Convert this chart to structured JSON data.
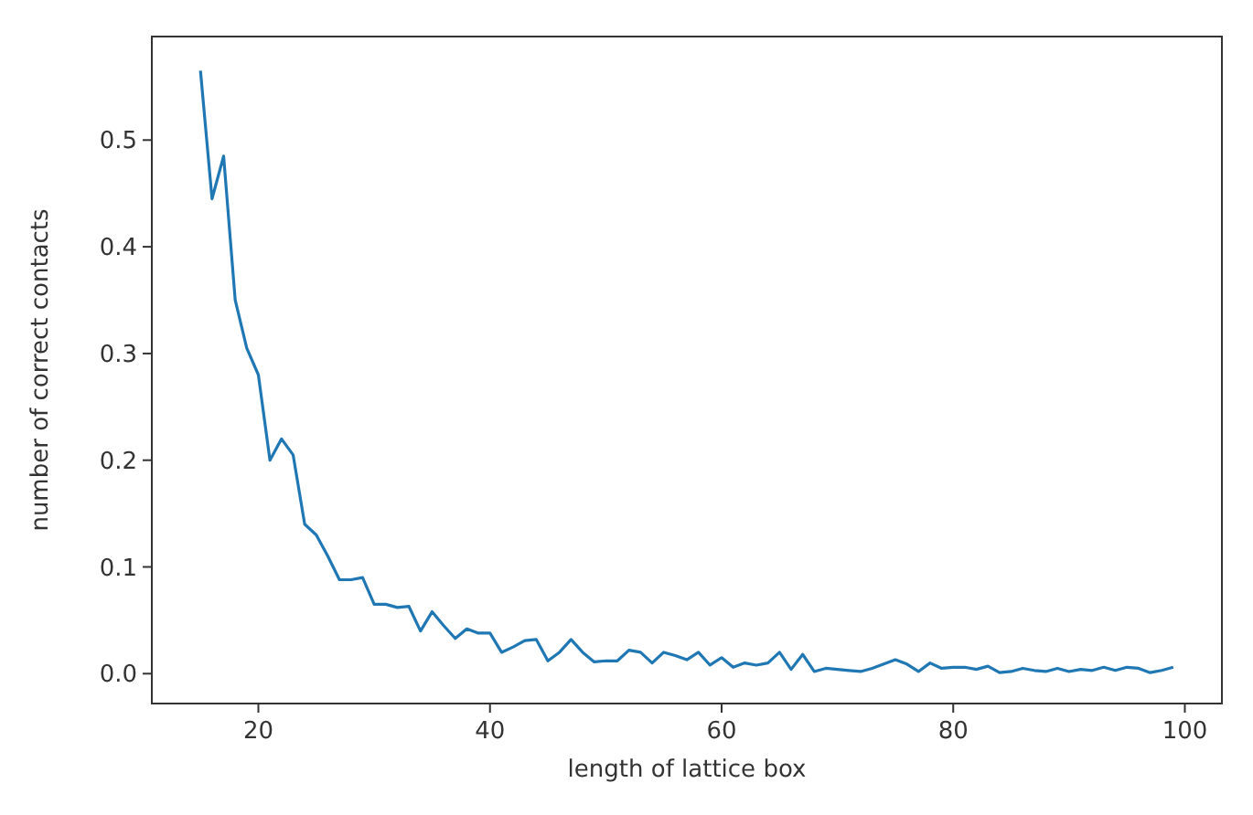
{
  "chart_data": {
    "type": "line",
    "xlabel": "length of lattice box",
    "ylabel": "number of correct contacts",
    "x": [
      15,
      16,
      17,
      18,
      19,
      20,
      21,
      22,
      23,
      24,
      25,
      26,
      27,
      28,
      29,
      30,
      31,
      32,
      33,
      34,
      35,
      36,
      37,
      38,
      39,
      40,
      41,
      42,
      43,
      44,
      45,
      46,
      47,
      48,
      49,
      50,
      51,
      52,
      53,
      54,
      55,
      56,
      57,
      58,
      59,
      60,
      61,
      62,
      63,
      64,
      65,
      66,
      67,
      68,
      69,
      70,
      71,
      72,
      73,
      74,
      75,
      76,
      77,
      78,
      79,
      80,
      81,
      82,
      83,
      84,
      85,
      86,
      87,
      88,
      89,
      90,
      91,
      92,
      93,
      94,
      95,
      96,
      97,
      98,
      99
    ],
    "series": [
      {
        "color": "#1f77b4",
        "values": [
          0.565,
          0.445,
          0.485,
          0.35,
          0.305,
          0.28,
          0.2,
          0.22,
          0.205,
          0.14,
          0.13,
          0.11,
          0.088,
          0.088,
          0.09,
          0.065,
          0.065,
          0.062,
          0.063,
          0.04,
          0.058,
          0.045,
          0.033,
          0.042,
          0.038,
          0.038,
          0.02,
          0.025,
          0.031,
          0.032,
          0.012,
          0.02,
          0.032,
          0.02,
          0.011,
          0.012,
          0.012,
          0.022,
          0.02,
          0.01,
          0.02,
          0.017,
          0.013,
          0.02,
          0.008,
          0.015,
          0.006,
          0.01,
          0.008,
          0.01,
          0.02,
          0.004,
          0.018,
          0.002,
          0.005,
          0.004,
          0.003,
          0.002,
          0.005,
          0.009,
          0.013,
          0.009,
          0.002,
          0.01,
          0.005,
          0.006,
          0.006,
          0.004,
          0.007,
          0.001,
          0.002,
          0.005,
          0.003,
          0.002,
          0.005,
          0.002,
          0.004,
          0.003,
          0.006,
          0.003,
          0.006,
          0.005,
          0.001,
          0.003,
          0.006
        ]
      }
    ],
    "xlim": [
      10.8,
      103.2
    ],
    "xticks": [
      20,
      40,
      60,
      80,
      100
    ],
    "ylim": [
      -0.028,
      0.597
    ],
    "yticks": [
      {
        "value": 0,
        "label": "0.0"
      },
      {
        "value": 0.1,
        "label": "0.1"
      },
      {
        "value": 0.2,
        "label": "0.2"
      },
      {
        "value": 0.3,
        "label": "0.3"
      },
      {
        "value": 0.4,
        "label": "0.4"
      },
      {
        "value": 0.5,
        "label": "0.5"
      }
    ],
    "grid": false,
    "marker": "none",
    "line_style": "solid"
  }
}
